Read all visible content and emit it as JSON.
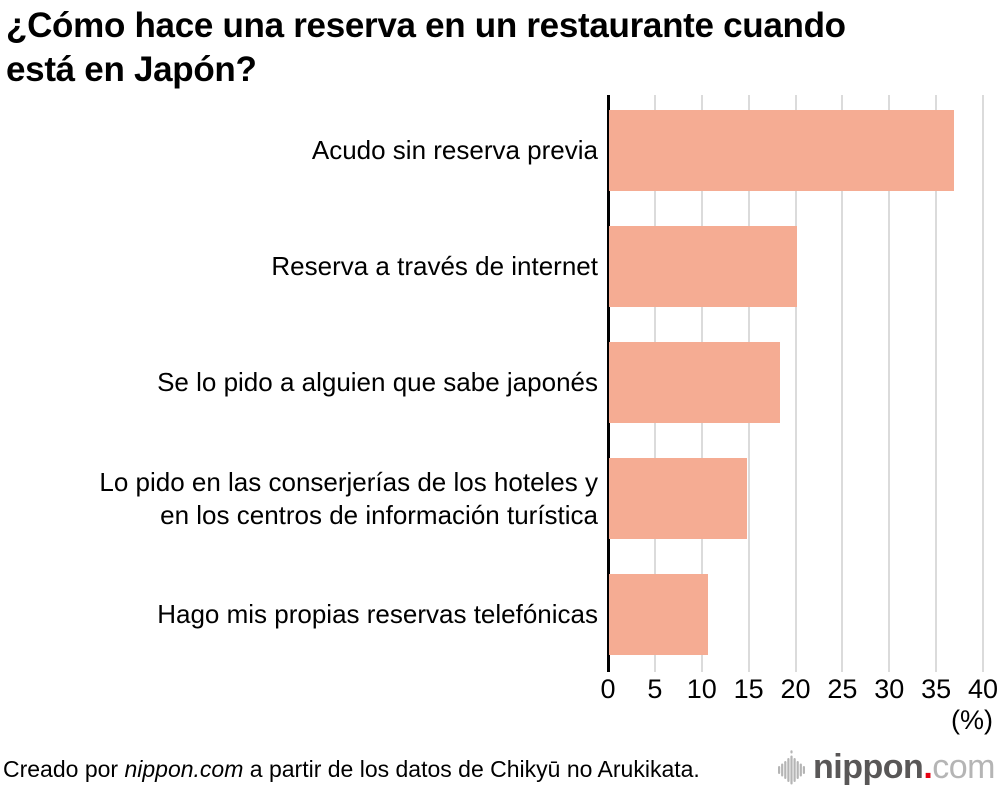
{
  "title": "¿Cómo hace una reserva en un restaurante cuando\nestá en Japón?",
  "chart_data": {
    "type": "bar",
    "orientation": "horizontal",
    "title": "¿Cómo hace una reserva en un restaurante cuando está en Japón?",
    "categories": [
      "Acudo sin reserva previa",
      "Reserva a través de internet",
      "Se lo pido a alguien que sabe japonés",
      "Lo pido en las conserjerías de los hoteles y\nen los centros de información turística",
      "Hago mis propias reservas telefónicas"
    ],
    "values": [
      36.8,
      20,
      18.2,
      14.7,
      10.6
    ],
    "xlim": [
      0,
      40
    ],
    "xticks": [
      0,
      5,
      10,
      15,
      20,
      25,
      30,
      35,
      40
    ],
    "unit_label": "(%)",
    "grid": true,
    "bar_color": "#F5AC93",
    "gridline_color": "#DBDBDB",
    "axis_color": "#000000"
  },
  "footer": {
    "credit_prefix": "Creado por ",
    "credit_source": "nippon.com",
    "credit_suffix": " a partir de los datos de Chikyū no Arukikata.",
    "logo": {
      "text_main": "nippon",
      "text_dot": ".",
      "text_suffix": "com",
      "color_main": "#595757",
      "color_dot": "#E60012",
      "color_suffix": "#B5B5B5",
      "icon_color": "#B5B5B5"
    }
  }
}
